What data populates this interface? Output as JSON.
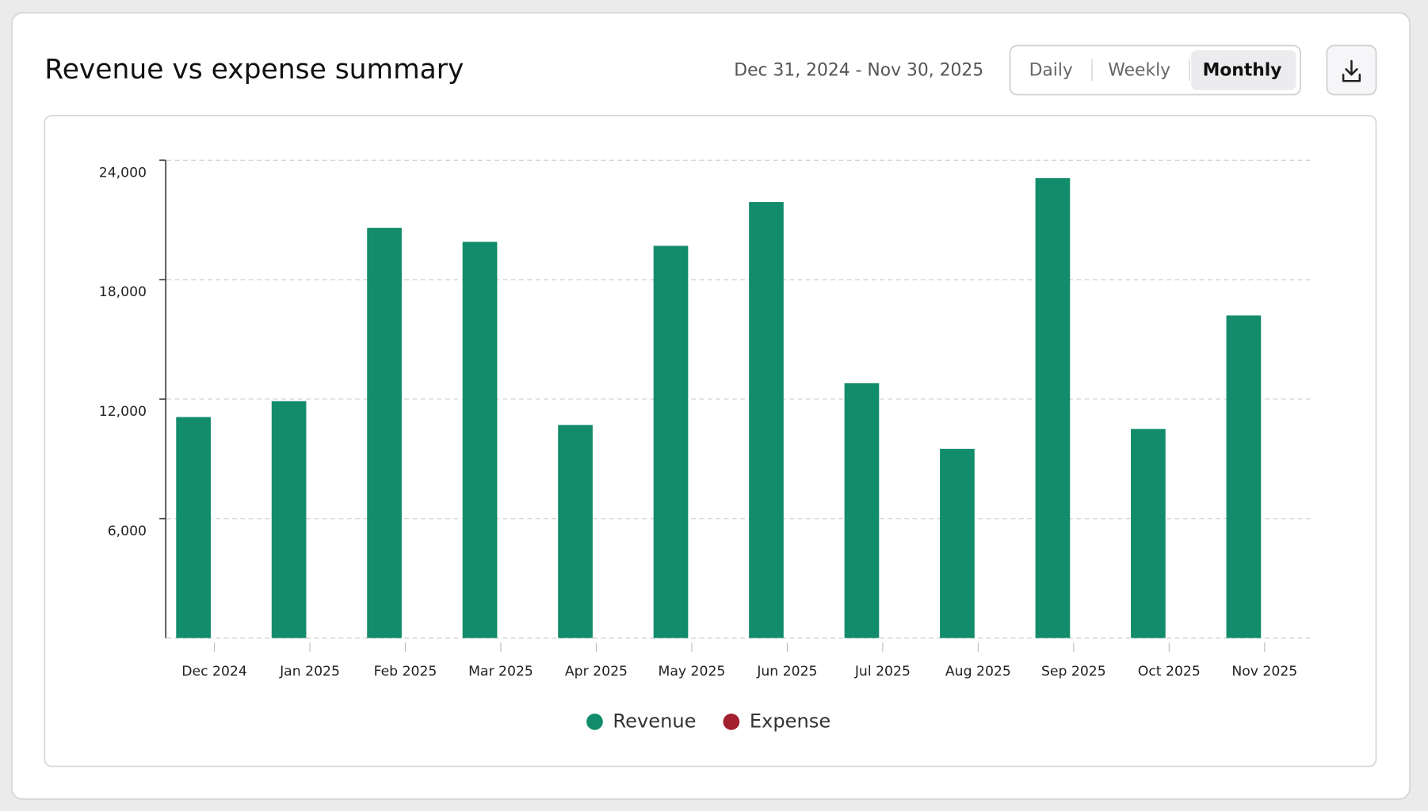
{
  "chart_data": {
    "type": "bar",
    "title": "Revenue vs expense summary",
    "date_range": "Dec 31, 2024 - Nov 30, 2025",
    "views": [
      "Daily",
      "Weekly",
      "Monthly"
    ],
    "active_view": 2,
    "categories": [
      "Dec 2024",
      "Jan 2025",
      "Feb 2025",
      "Mar 2025",
      "Apr 2025",
      "May 2025",
      "Jun 2025",
      "Jul 2025",
      "Aug 2025",
      "Sep 2025",
      "Oct 2025",
      "Nov 2025"
    ],
    "series": [
      {
        "name": "Revenue",
        "color": "#128c6a",
        "values": [
          11100,
          11900,
          20600,
          19900,
          10700,
          19700,
          21900,
          12800,
          9500,
          23100,
          10500,
          16200
        ]
      },
      {
        "name": "Expense",
        "color": "#a3202f",
        "values": [
          null,
          null,
          null,
          null,
          null,
          null,
          null,
          null,
          null,
          null,
          null,
          null
        ]
      }
    ],
    "ylim": [
      0,
      24000
    ],
    "yticks": [
      {
        "value": 6000,
        "label": "6,000"
      },
      {
        "value": 12000,
        "label": "12,000"
      },
      {
        "value": 18000,
        "label": "18,000"
      },
      {
        "value": 24000,
        "label": "24,000"
      }
    ],
    "grid": true
  }
}
